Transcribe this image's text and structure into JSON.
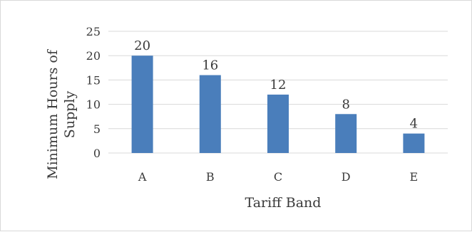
{
  "chart_data": {
    "type": "bar",
    "categories": [
      "A",
      "B",
      "C",
      "D",
      "E"
    ],
    "values": [
      20,
      16,
      12,
      8,
      4
    ],
    "data_labels": [
      "20",
      "16",
      "12",
      "8",
      "4"
    ],
    "title": "",
    "xlabel": "Tariff Band",
    "ylabel_lines": [
      "Minimum Hours of",
      "Supply"
    ],
    "ylim": [
      0,
      25
    ],
    "yticks": [
      0,
      5,
      10,
      15,
      20,
      25
    ],
    "ytick_labels": [
      "0",
      "5",
      "10",
      "15",
      "20",
      "25"
    ],
    "grid": "horizontal",
    "legend": "none",
    "colors": {
      "bar": "#4a7ebb",
      "grid": "#d9d9d9",
      "text": "#3a3a3a",
      "border": "#d9d9d9"
    }
  }
}
